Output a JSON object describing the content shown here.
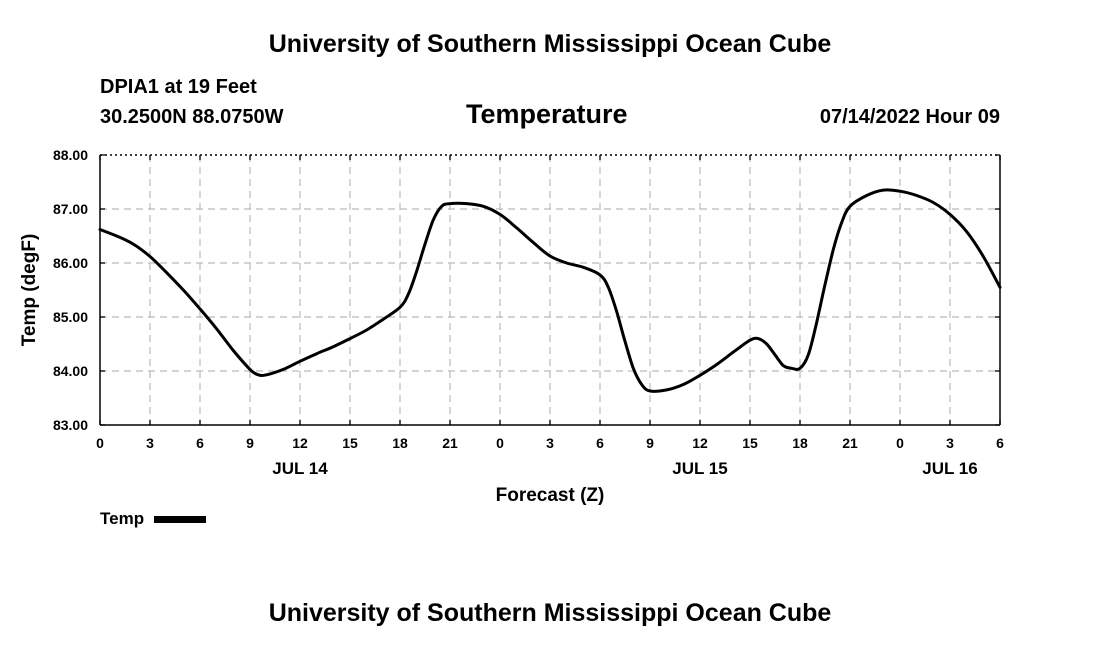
{
  "page": {
    "title_top": "University of Southern Mississippi Ocean Cube",
    "title_bottom": "University of Southern Mississippi Ocean Cube",
    "station": "DPIA1 at 19 Feet",
    "coordinates": "30.2500N  88.0750W",
    "variable_title": "Temperature",
    "datetime": "07/14/2022 Hour 09"
  },
  "legend": {
    "label": "Temp"
  },
  "colors": {
    "line": "#000000",
    "grid": "#bbbbbb",
    "axis": "#000000",
    "background": "#ffffff"
  },
  "chart_data": {
    "type": "line",
    "title": "Temperature",
    "xlabel": "Forecast (Z)",
    "ylabel": "Temp (degF)",
    "xlim": [
      0,
      54
    ],
    "ylim": [
      83.0,
      88.0
    ],
    "grid": true,
    "legend_position": "bottom-left",
    "x_ticks": [
      0,
      3,
      6,
      9,
      12,
      15,
      18,
      21,
      24,
      27,
      30,
      33,
      36,
      39,
      42,
      45,
      48,
      51,
      54
    ],
    "x_tick_labels": [
      "0",
      "3",
      "6",
      "9",
      "12",
      "15",
      "18",
      "21",
      "0",
      "3",
      "6",
      "9",
      "12",
      "15",
      "18",
      "21",
      "0",
      "3",
      "6"
    ],
    "y_ticks": [
      83.0,
      84.0,
      85.0,
      86.0,
      87.0,
      88.0
    ],
    "y_tick_labels": [
      "83.00",
      "84.00",
      "85.00",
      "86.00",
      "87.00",
      "88.00"
    ],
    "date_labels": [
      {
        "x": 12,
        "label": "JUL 14"
      },
      {
        "x": 36,
        "label": "JUL 15"
      },
      {
        "x": 51,
        "label": "JUL 16"
      }
    ],
    "series": [
      {
        "name": "Temp",
        "x": [
          0,
          1,
          2,
          3,
          4,
          5,
          6,
          7,
          8,
          9,
          9.5,
          10,
          11,
          12,
          13,
          14,
          15,
          16,
          17,
          18,
          18.5,
          19,
          19.5,
          20,
          20.5,
          21,
          22,
          23,
          24,
          25,
          26,
          27,
          28,
          29,
          30,
          30.5,
          31,
          31.5,
          32,
          32.5,
          33,
          34,
          35,
          36,
          37,
          38,
          39,
          39.5,
          40,
          40.5,
          41,
          41.5,
          42,
          42.5,
          43,
          43.5,
          44,
          44.5,
          45,
          46,
          47,
          48,
          49,
          50,
          51,
          52,
          53,
          54
        ],
        "values": [
          86.62,
          86.5,
          86.35,
          86.12,
          85.82,
          85.5,
          85.15,
          84.78,
          84.38,
          84.03,
          83.93,
          83.93,
          84.03,
          84.18,
          84.32,
          84.45,
          84.6,
          84.76,
          84.96,
          85.18,
          85.42,
          85.85,
          86.35,
          86.8,
          87.05,
          87.1,
          87.1,
          87.05,
          86.9,
          86.65,
          86.38,
          86.13,
          86.0,
          85.92,
          85.78,
          85.55,
          85.1,
          84.55,
          84.05,
          83.75,
          83.63,
          83.65,
          83.75,
          83.92,
          84.12,
          84.35,
          84.57,
          84.6,
          84.5,
          84.3,
          84.1,
          84.05,
          84.05,
          84.3,
          84.9,
          85.6,
          86.25,
          86.75,
          87.05,
          87.25,
          87.35,
          87.33,
          87.25,
          87.12,
          86.9,
          86.58,
          86.12,
          85.55
        ]
      }
    ]
  }
}
